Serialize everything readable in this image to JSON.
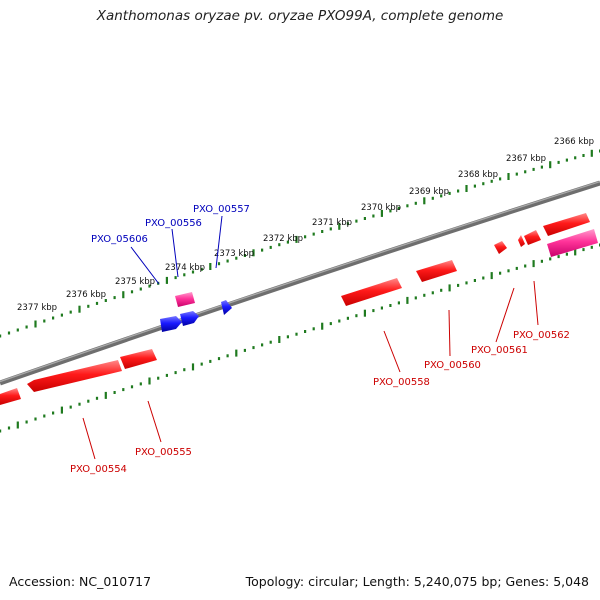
{
  "title": "Xanthomonas oryzae pv. oryzae PXO99A, complete genome",
  "footer": {
    "accession": "Accession: NC_010717",
    "summary": "Topology: circular; Length: 5,240,075 bp; Genes: 5,048"
  },
  "colors": {
    "backbone": "#7a7a7a",
    "tick": "#1f7a1f",
    "forward_gene": "#e60000",
    "reverse_gene": "#0000d0",
    "rna_gene": "#e6197f",
    "forward_label": "#cc0000",
    "reverse_label": "#0000bb"
  },
  "kbp_ticks": [
    "2366 kbp",
    "2367 kbp",
    "2368 kbp",
    "2369 kbp",
    "2370 kbp",
    "2371 kbp",
    "2372 kbp",
    "2373 kbp",
    "2374 kbp",
    "2375 kbp",
    "2376 kbp",
    "2377 kbp"
  ],
  "reverse_strand_labels": [
    "PXO_05606",
    "PXO_00556",
    "PXO_00557"
  ],
  "forward_strand_labels": [
    "PXO_00554",
    "PXO_00555",
    "PXO_00558",
    "PXO_00560",
    "PXO_00561",
    "PXO_00562"
  ]
}
